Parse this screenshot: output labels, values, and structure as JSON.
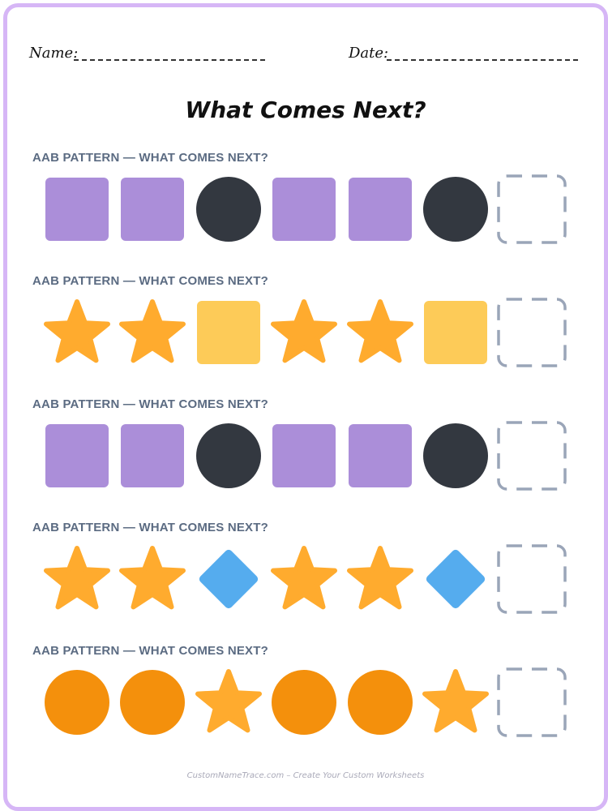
{
  "header": {
    "name_label": "Name:",
    "date_label": "Date:"
  },
  "title": "What Comes Next?",
  "colors": {
    "purple": "#ab8ed9",
    "dark": "#333840",
    "orange_star": "#ffab2e",
    "yellow": "#fdcb58",
    "blue": "#55acee",
    "orange": "#f4900c",
    "answer_border": "#9aa5b8"
  },
  "rows": [
    {
      "label": "AAB PATTERN — WHAT COMES NEXT?",
      "shapes": [
        {
          "kind": "square",
          "color": "purple"
        },
        {
          "kind": "square",
          "color": "purple"
        },
        {
          "kind": "circle",
          "color": "dark"
        },
        {
          "kind": "square",
          "color": "purple"
        },
        {
          "kind": "square",
          "color": "purple"
        },
        {
          "kind": "circle",
          "color": "dark"
        }
      ]
    },
    {
      "label": "AAB PATTERN — WHAT COMES NEXT?",
      "shapes": [
        {
          "kind": "star",
          "color": "orange_star"
        },
        {
          "kind": "star",
          "color": "orange_star"
        },
        {
          "kind": "square",
          "color": "yellow"
        },
        {
          "kind": "star",
          "color": "orange_star"
        },
        {
          "kind": "star",
          "color": "orange_star"
        },
        {
          "kind": "square",
          "color": "yellow"
        }
      ]
    },
    {
      "label": "AAB PATTERN — WHAT COMES NEXT?",
      "shapes": [
        {
          "kind": "square",
          "color": "purple"
        },
        {
          "kind": "square",
          "color": "purple"
        },
        {
          "kind": "circle",
          "color": "dark"
        },
        {
          "kind": "square",
          "color": "purple"
        },
        {
          "kind": "square",
          "color": "purple"
        },
        {
          "kind": "circle",
          "color": "dark"
        }
      ]
    },
    {
      "label": "AAB PATTERN — WHAT COMES NEXT?",
      "shapes": [
        {
          "kind": "star",
          "color": "orange_star"
        },
        {
          "kind": "star",
          "color": "orange_star"
        },
        {
          "kind": "diamond",
          "color": "blue"
        },
        {
          "kind": "star",
          "color": "orange_star"
        },
        {
          "kind": "star",
          "color": "orange_star"
        },
        {
          "kind": "diamond",
          "color": "blue"
        }
      ]
    },
    {
      "label": "AAB PATTERN — WHAT COMES NEXT?",
      "shapes": [
        {
          "kind": "circle",
          "color": "orange"
        },
        {
          "kind": "circle",
          "color": "orange"
        },
        {
          "kind": "star",
          "color": "orange_star"
        },
        {
          "kind": "circle",
          "color": "orange"
        },
        {
          "kind": "circle",
          "color": "orange"
        },
        {
          "kind": "star",
          "color": "orange_star"
        }
      ]
    }
  ],
  "footer": "CustomNameTrace.com – Create Your Custom Worksheets"
}
